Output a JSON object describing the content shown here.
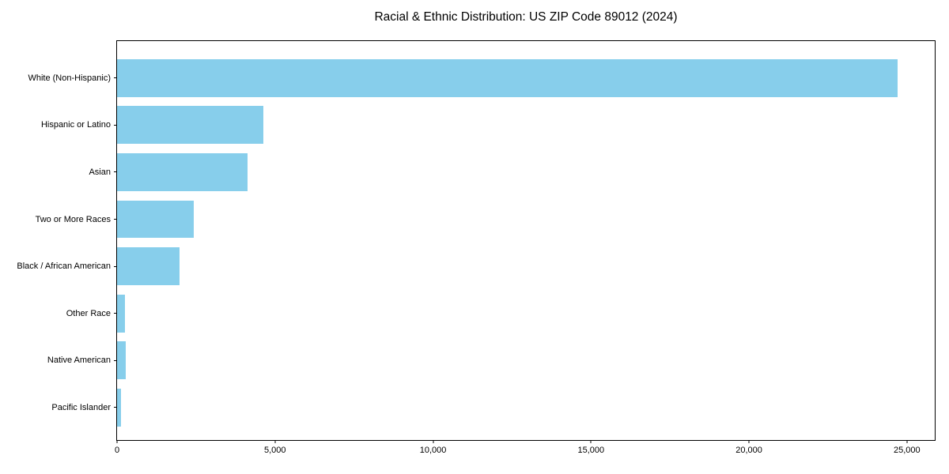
{
  "figure": {
    "background": "#ffffff",
    "text_color": "#000000"
  },
  "chart_data": {
    "type": "bar",
    "orientation": "horizontal",
    "title": "Racial & Ethnic Distribution: US ZIP Code 89012 (2024)",
    "categories": [
      "White (Non-Hispanic)",
      "Hispanic or Latino",
      "Asian",
      "Two or More Races",
      "Black / African American",
      "Other Race",
      "Native American",
      "Pacific Islander"
    ],
    "values": [
      24700,
      4640,
      4120,
      2440,
      1980,
      240,
      270,
      115
    ],
    "xlabel": "",
    "ylabel": "",
    "xlim": [
      0,
      25880
    ],
    "xticks": [
      0,
      5000,
      10000,
      15000,
      20000,
      25000
    ],
    "xtick_labels": [
      "0",
      "5,000",
      "10,000",
      "15,000",
      "20,000",
      "25,000"
    ],
    "bar_color": "#87CEEB",
    "grid": false,
    "legend": "none"
  }
}
